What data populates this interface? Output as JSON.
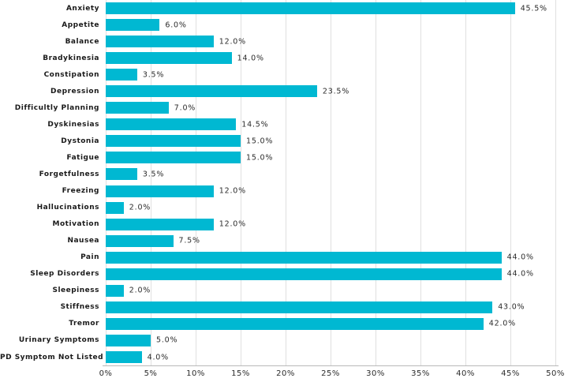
{
  "chart_data": {
    "type": "bar",
    "orientation": "horizontal",
    "title": "",
    "xlabel": "",
    "ylabel": "",
    "xlim": [
      0,
      50
    ],
    "grid": true,
    "bar_color": "#00b8d2",
    "gridline_color": "#e0e0e0",
    "axis_line_color": "#b9b9b9",
    "categories": [
      "Anxiety",
      "Appetite",
      "Balance",
      "Bradykinesia",
      "Constipation",
      "Depression",
      "Difficultly Planning",
      "Dyskinesias",
      "Dystonia",
      "Fatigue",
      "Forgetfulness",
      "Freezing",
      "Hallucinations",
      "Motivation",
      "Nausea",
      "Pain",
      "Sleep Disorders",
      "Sleepiness",
      "Stiffness",
      "Tremor",
      "Urinary Symptoms",
      "PD Symptom Not Listed"
    ],
    "values": [
      45.5,
      6.0,
      12.0,
      14.0,
      3.5,
      23.5,
      7.0,
      14.5,
      15.0,
      15.0,
      3.5,
      12.0,
      2.0,
      12.0,
      7.5,
      44.0,
      44.0,
      2.0,
      43.0,
      42.0,
      5.0,
      4.0
    ],
    "value_labels": [
      "45.5%",
      "6.0%",
      "12.0%",
      "14.0%",
      "3.5%",
      "23.5%",
      "7.0%",
      "14.5%",
      "15.0%",
      "15.0%",
      "3.5%",
      "12.0%",
      "2.0%",
      "12.0%",
      "7.5%",
      "44.0%",
      "44.0%",
      "2.0%",
      "43.0%",
      "42.0%",
      "5.0%",
      "4.0%"
    ],
    "x_ticks": [
      {
        "value": 0,
        "label": "0%"
      },
      {
        "value": 5,
        "label": "5%"
      },
      {
        "value": 10,
        "label": "10%"
      },
      {
        "value": 15,
        "label": "15%"
      },
      {
        "value": 20,
        "label": "20%"
      },
      {
        "value": 25,
        "label": "25%"
      },
      {
        "value": 30,
        "label": "30%"
      },
      {
        "value": 35,
        "label": "35%"
      },
      {
        "value": 40,
        "label": "40%"
      },
      {
        "value": 45,
        "label": "45%"
      },
      {
        "value": 50,
        "label": "50%"
      }
    ]
  }
}
